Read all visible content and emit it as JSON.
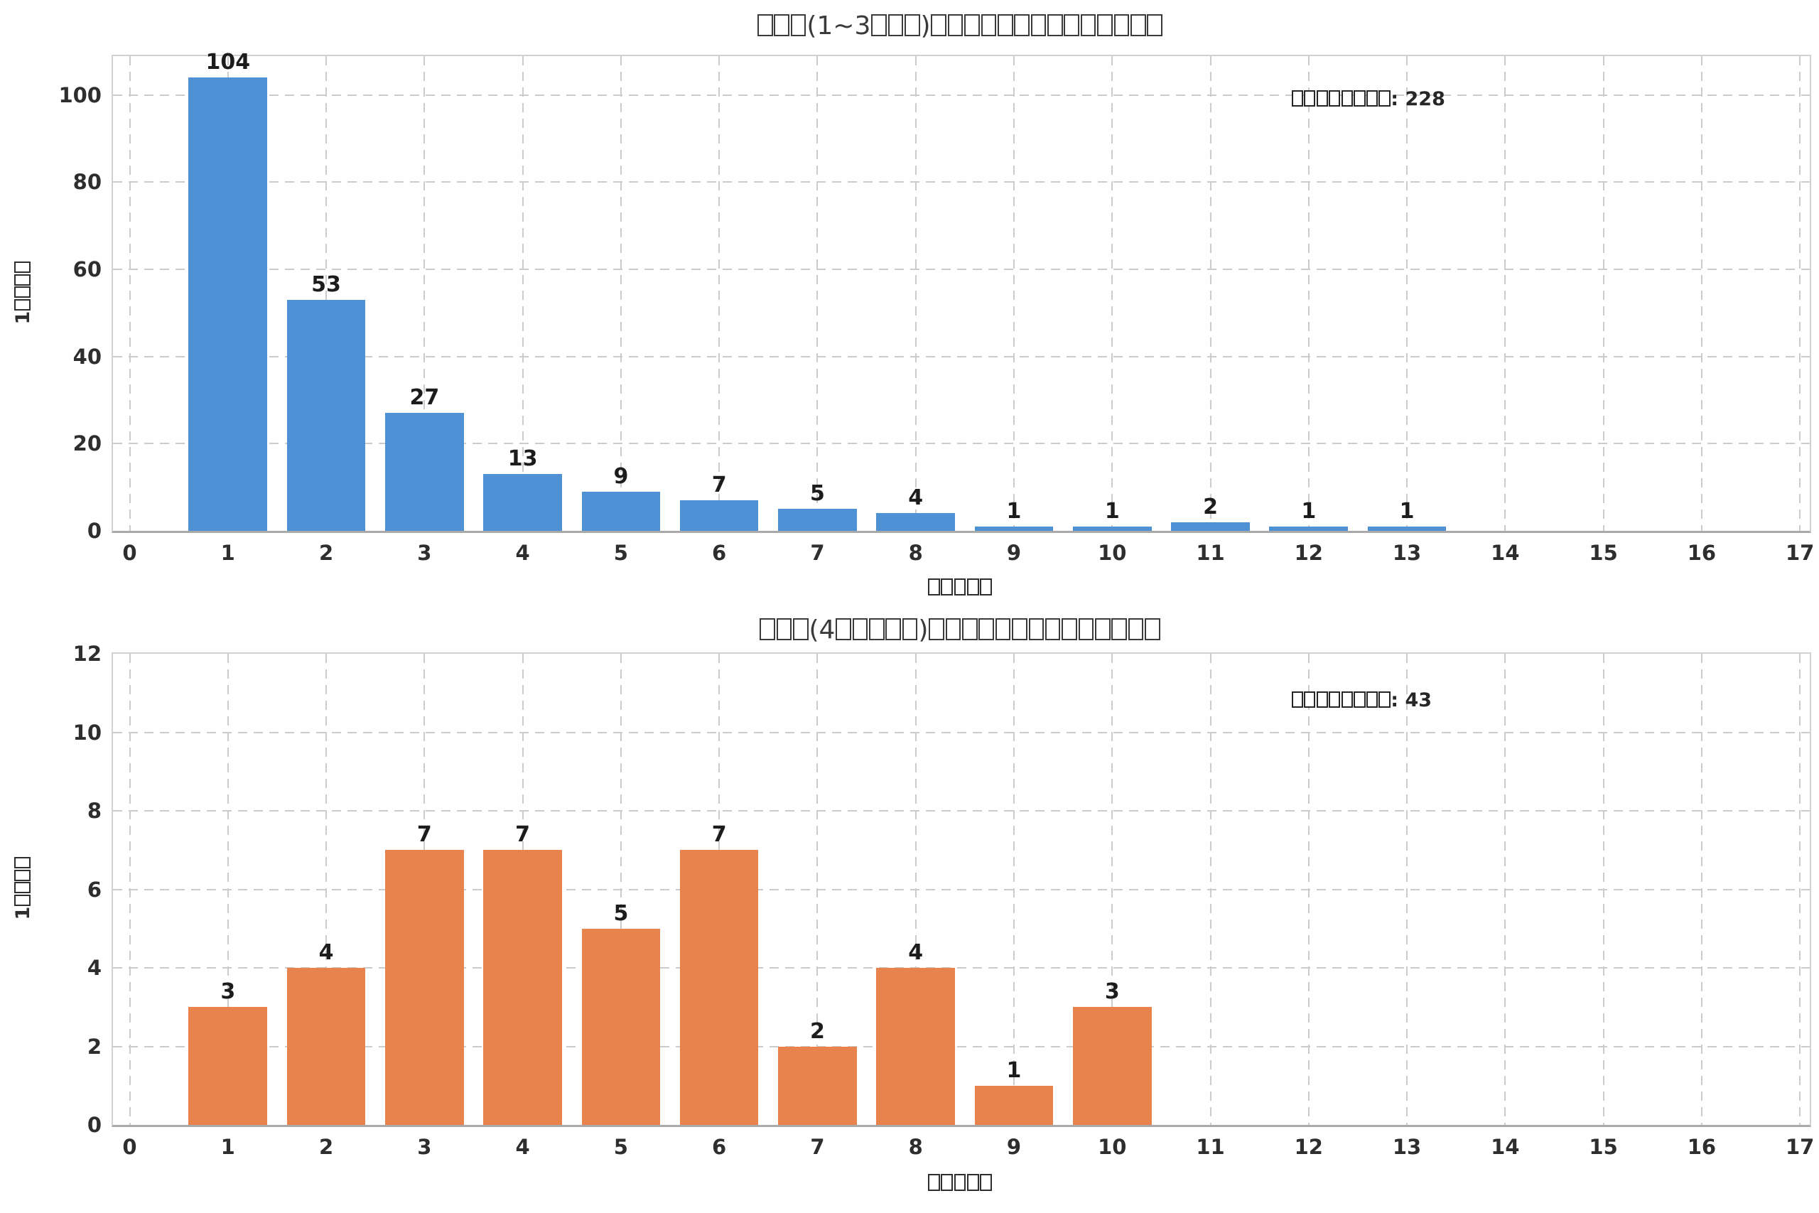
{
  "figure": {
    "background": "#ffffff",
    "grid_color": "#cccccc",
    "spine_color": "#cfd2d3",
    "axis_line_color": "#a9a9a9",
    "text_color": "#2e2e2e"
  },
  "chart_data": [
    {
      "type": "bar",
      "title": "□□□(1~3□□□)□□□□□□□□□□□□□□",
      "annotation": "□□□□□□□□: 228",
      "xlabel": "□□□□□",
      "ylabel": "1□□□□",
      "categories": [
        1,
        2,
        3,
        4,
        5,
        6,
        7,
        8,
        9,
        10,
        11,
        12,
        13
      ],
      "values": [
        104,
        53,
        27,
        13,
        9,
        7,
        5,
        4,
        1,
        1,
        2,
        1,
        1
      ],
      "bar_color": "#4e91d5",
      "bar_width": 0.8,
      "xticks": [
        0,
        1,
        2,
        3,
        4,
        5,
        6,
        7,
        8,
        9,
        10,
        11,
        12,
        13,
        14,
        15,
        16,
        17
      ],
      "yticks": [
        0,
        20,
        40,
        60,
        80,
        100
      ],
      "xlim": [
        -0.17,
        17.1
      ],
      "ylim": [
        0,
        108.9
      ],
      "grid": true,
      "legend": "none"
    },
    {
      "type": "bar",
      "title": "□□□(4□□□□□)□□□□□□□□□□□□□□",
      "annotation": "□□□□□□□□: 43",
      "xlabel": "□□□□□",
      "ylabel": "1□□□□",
      "categories": [
        1,
        2,
        3,
        4,
        5,
        6,
        7,
        8,
        9,
        10
      ],
      "values": [
        3,
        4,
        7,
        7,
        5,
        7,
        2,
        4,
        1,
        3
      ],
      "bar_color": "#e8834d",
      "bar_width": 0.8,
      "xticks": [
        0,
        1,
        2,
        3,
        4,
        5,
        6,
        7,
        8,
        9,
        10,
        11,
        12,
        13,
        14,
        15,
        16,
        17
      ],
      "yticks": [
        0,
        2,
        4,
        6,
        8,
        10,
        12
      ],
      "xlim": [
        -0.17,
        17.1
      ],
      "ylim": [
        0,
        12
      ],
      "grid": true,
      "legend": "none"
    }
  ]
}
